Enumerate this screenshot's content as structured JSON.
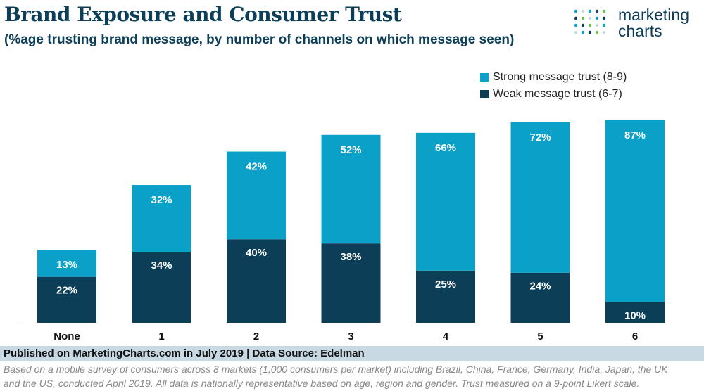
{
  "header": {
    "title": "Brand Exposure and Consumer Trust",
    "subtitle": "(%age trusting brand message, by number of channels on which message seen)"
  },
  "logo": {
    "line1": "marketing",
    "line2": "charts",
    "icon": "dot-grid-icon"
  },
  "colors": {
    "strong": "#0aa0c8",
    "weak": "#0c3f57",
    "title": "#0c3f57",
    "footer_bar": "#c8d9e4"
  },
  "chart_data": {
    "type": "bar",
    "stacked": true,
    "title": "Brand Exposure and Consumer Trust",
    "subtitle": "(%age trusting brand message, by number of channels on which message seen)",
    "categories": [
      "None",
      "1",
      "2",
      "3",
      "4",
      "5",
      "6"
    ],
    "series": [
      {
        "name": "Weak message trust (6-7)",
        "values": [
          22,
          34,
          40,
          38,
          25,
          24,
          10
        ],
        "labels": [
          "22%",
          "34%",
          "40%",
          "38%",
          "25%",
          "24%",
          "10%"
        ]
      },
      {
        "name": "Strong message trust (8-9)",
        "values": [
          13,
          32,
          42,
          52,
          66,
          72,
          87
        ],
        "labels": [
          "13%",
          "32%",
          "42%",
          "52%",
          "66%",
          "72%",
          "87%"
        ]
      }
    ],
    "legend_order": [
      "Strong message trust (8-9)",
      "Weak message trust (6-7)"
    ],
    "xlabel": "",
    "ylabel": "",
    "ylim": [
      0,
      100
    ],
    "grid": false,
    "legend_position": "top-right"
  },
  "footer": {
    "published": "Published on MarketingCharts.com in July 2019 | Data Source: Edelman",
    "note_line1": "Based on a mobile survey of consumers across 8 markets (1,000 consumers per market) including Brazil, China, France, Germany, India, Japan, the UK",
    "note_line2": "and the US, conducted April 2019. All data is nationally representative based on age, region and gender. Trust measured on a 9-point Likert scale."
  }
}
